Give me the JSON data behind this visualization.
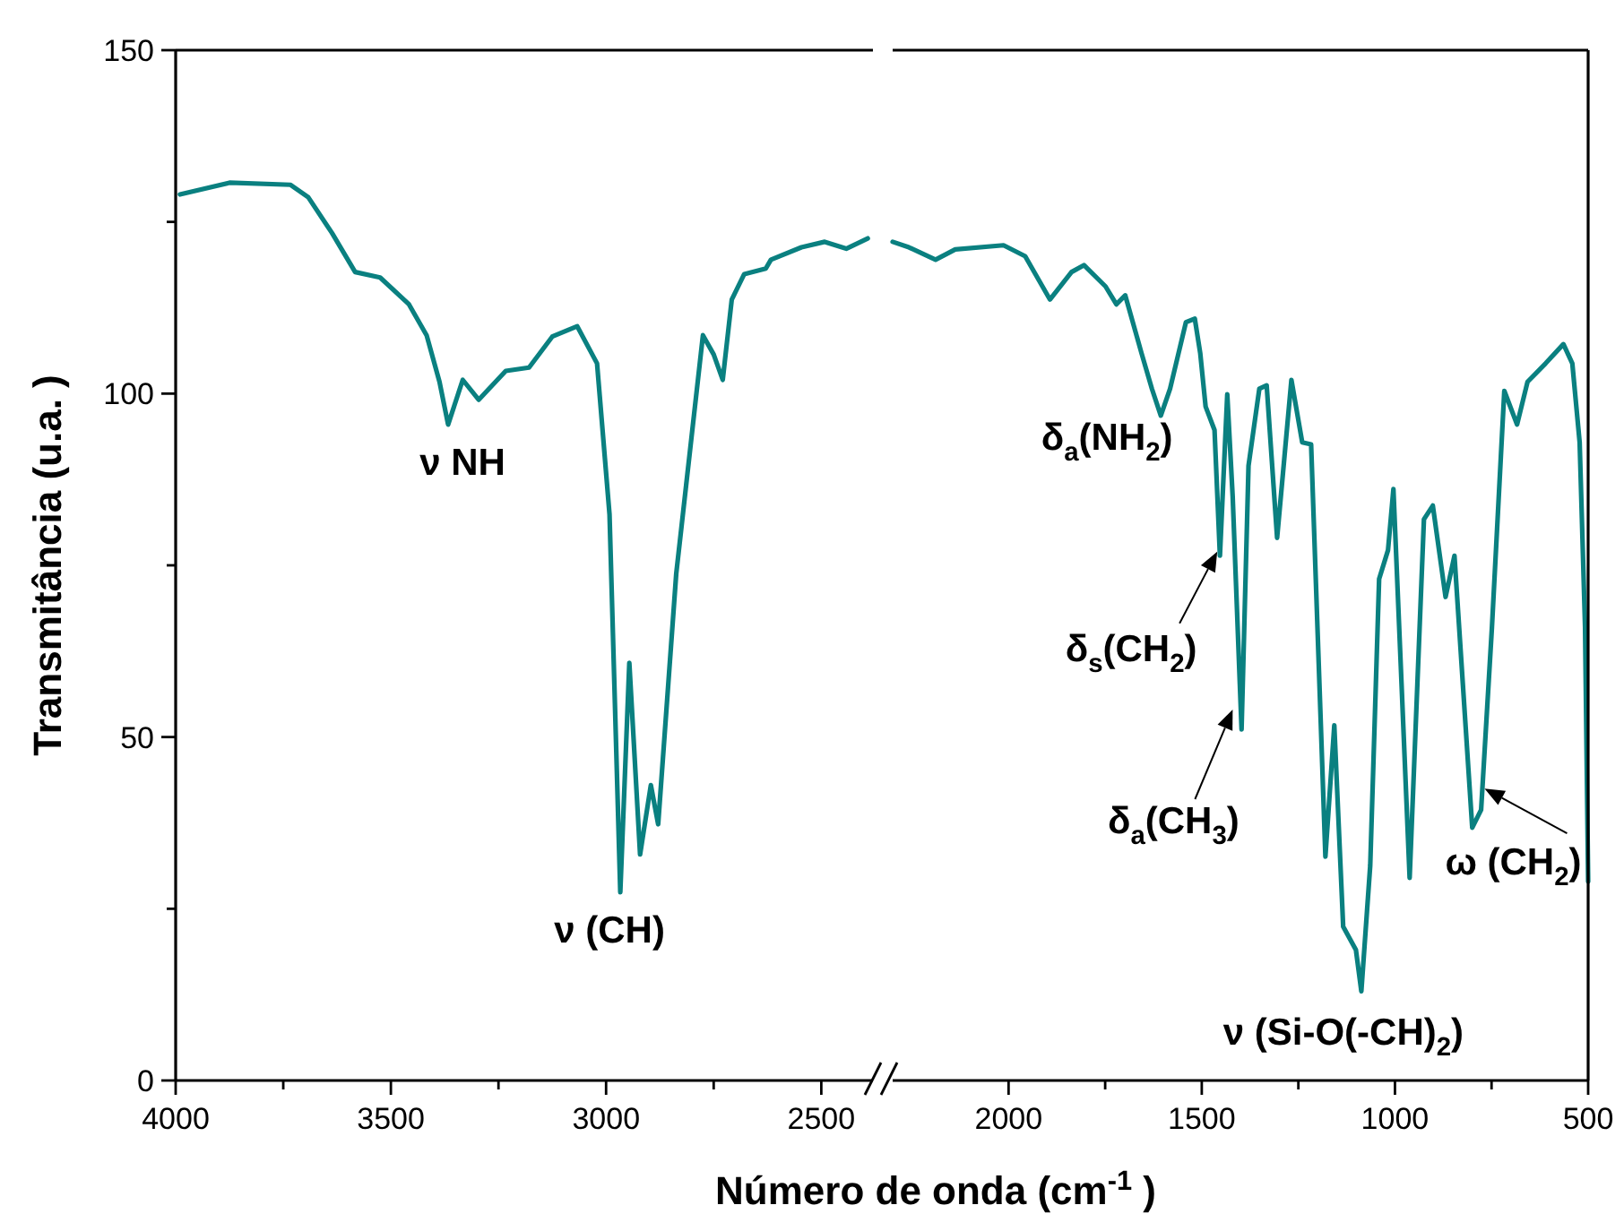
{
  "chart_data": [
    {
      "type": "line",
      "xlabel": "Número de onda (cm$^{-1}$ )",
      "ylabel": "Transmitância (u.a. )",
      "xlim": [
        4000,
        2380
      ],
      "xticks": [
        4000,
        {
          "value": 3750,
          "label": null
        },
        3500,
        {
          "value": 3250,
          "label": null
        },
        3000,
        {
          "value": 2750,
          "label": null
        },
        2500
      ],
      "ylim": [
        0,
        150
      ],
      "yticks": [
        0,
        {
          "value": 25,
          "label": null
        },
        50,
        {
          "value": 75,
          "label": null
        },
        100,
        {
          "value": 125,
          "label": null
        },
        150
      ],
      "series": [
        {
          "color": "#0a8080",
          "x": [
            3990,
            3875,
            3733,
            3692,
            3637,
            3583,
            3525,
            3458,
            3417,
            3387,
            3367,
            3333,
            3296,
            3233,
            3179,
            3125,
            3067,
            3021,
            2992,
            2967,
            2946,
            2921,
            2896,
            2879,
            2837,
            2775,
            2750,
            2729,
            2708,
            2679,
            2629,
            2617,
            2546,
            2492,
            2442,
            2392
          ],
          "values": [
            129,
            130.7,
            130.4,
            128.6,
            123.4,
            117.7,
            116.9,
            113,
            108.5,
            101.7,
            95.5,
            102,
            99.1,
            103.3,
            103.8,
            108.3,
            109.8,
            104.4,
            82.4,
            27.4,
            60.8,
            32.9,
            43,
            37.3,
            73.8,
            108.5,
            105.7,
            102,
            113.7,
            117.4,
            118.2,
            119.5,
            121.3,
            122.1,
            121.1,
            122.6
          ]
        }
      ],
      "annotations": [
        {
          "text": "ν NH",
          "x": 3367,
          "y": 95.5
        },
        {
          "text": "ν (CH)",
          "x": 2967,
          "y": 27.4
        }
      ]
    },
    {
      "type": "line",
      "tick_labels": "x",
      "xlim": [
        2300,
        500
      ],
      "xticks": [
        2000,
        {
          "value": 1750,
          "label": null
        },
        1500,
        {
          "value": 1250,
          "label": null
        },
        1000,
        {
          "value": 750,
          "label": null
        },
        500
      ],
      "ylim": [
        0,
        150
      ],
      "series": [
        {
          "color": "#0a8080",
          "x": [
            2300,
            2258,
            2189,
            2138,
            2013,
            1957,
            1893,
            1837,
            1805,
            1749,
            1721,
            1698,
            1656,
            1629,
            1606,
            1582,
            1541,
            1518,
            1504,
            1490,
            1467,
            1453,
            1434,
            1420,
            1397,
            1379,
            1351,
            1332,
            1305,
            1268,
            1240,
            1217,
            1180,
            1157,
            1134,
            1101,
            1087,
            1064,
            1041,
            1018,
            1004,
            962,
            925,
            902,
            869,
            846,
            800,
            777,
            749,
            717,
            684,
            657,
            610,
            564,
            541,
            522,
            508,
            500
          ],
          "values": [
            122.1,
            121.3,
            119.5,
            121,
            121.6,
            120,
            113.7,
            117.7,
            118.7,
            115.6,
            113,
            114.3,
            105.9,
            100.7,
            96.8,
            100.7,
            110.4,
            110.9,
            105.9,
            98.1,
            94.7,
            76.4,
            99.9,
            85,
            51.1,
            89.5,
            100.7,
            101.2,
            79,
            102,
            92.9,
            92.6,
            32.6,
            51.7,
            22.4,
            19,
            13,
            31.3,
            73,
            77.2,
            86.1,
            29.5,
            81.7,
            83.7,
            70.4,
            76.4,
            36.8,
            39.4,
            66,
            100.4,
            95.5,
            101.7,
            104.4,
            107.2,
            104.4,
            92.9,
            66,
            29
          ]
        }
      ],
      "annotations": [
        {
          "text": "δ$_{a}$(NH$_{2}$)",
          "x": 1606,
          "y": 96.8
        },
        {
          "text": "δ$_{s}$(CH$_{2}$)",
          "x": 1460,
          "y": 77
        },
        {
          "text": "δ$_{a}$(CH$_{3}$)",
          "x": 1420,
          "y": 54
        },
        {
          "text": "ω (CH$_{2}$)",
          "x": 768,
          "y": 42.5
        },
        {
          "text": "ν (Si-O(-CH)$_{2}$)",
          "x": 1087,
          "y": 13
        }
      ]
    }
  ]
}
